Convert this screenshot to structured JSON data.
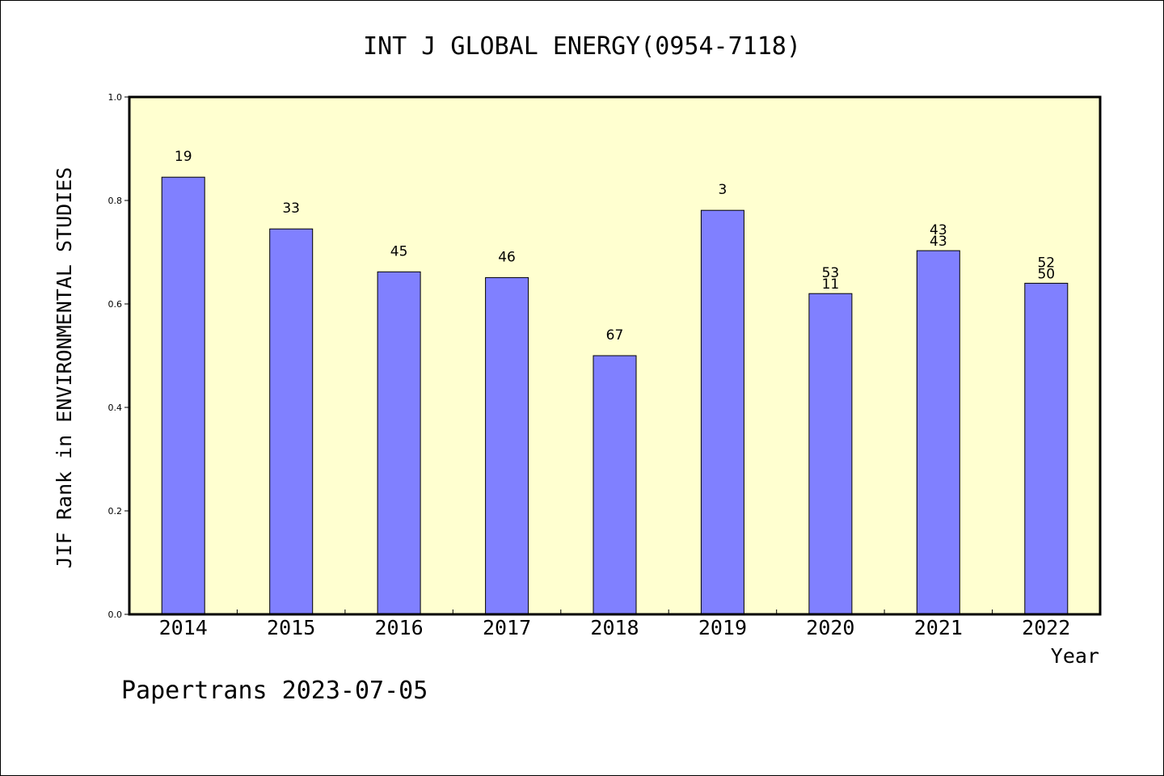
{
  "chart_data": {
    "type": "bar",
    "title": "INT J GLOBAL ENERGY(0954-7118)",
    "xlabel": "Year",
    "ylabel": "JIF Rank in ENVIRONMENTAL STUDIES",
    "ylim": [
      0,
      1.0
    ],
    "yticks": [
      "0.0",
      "0.2",
      "0.4",
      "0.6",
      "0.8",
      "1.0"
    ],
    "categories": [
      "2014",
      "2015",
      "2016",
      "2017",
      "2018",
      "2019",
      "2020",
      "2021",
      "2022"
    ],
    "values": [
      0.845,
      0.745,
      0.662,
      0.651,
      0.5,
      0.781,
      0.62,
      0.703,
      0.64
    ],
    "bar_labels": [
      [
        "19"
      ],
      [
        "33"
      ],
      [
        "45"
      ],
      [
        "46"
      ],
      [
        "67"
      ],
      [
        "3"
      ],
      [
        "53",
        "11"
      ],
      [
        "43",
        "43"
      ],
      [
        "52",
        "50"
      ]
    ],
    "plot_background": "#ffffd0",
    "bar_color": "#8080ff",
    "grid": false
  },
  "footer": "Papertrans 2023-07-05"
}
